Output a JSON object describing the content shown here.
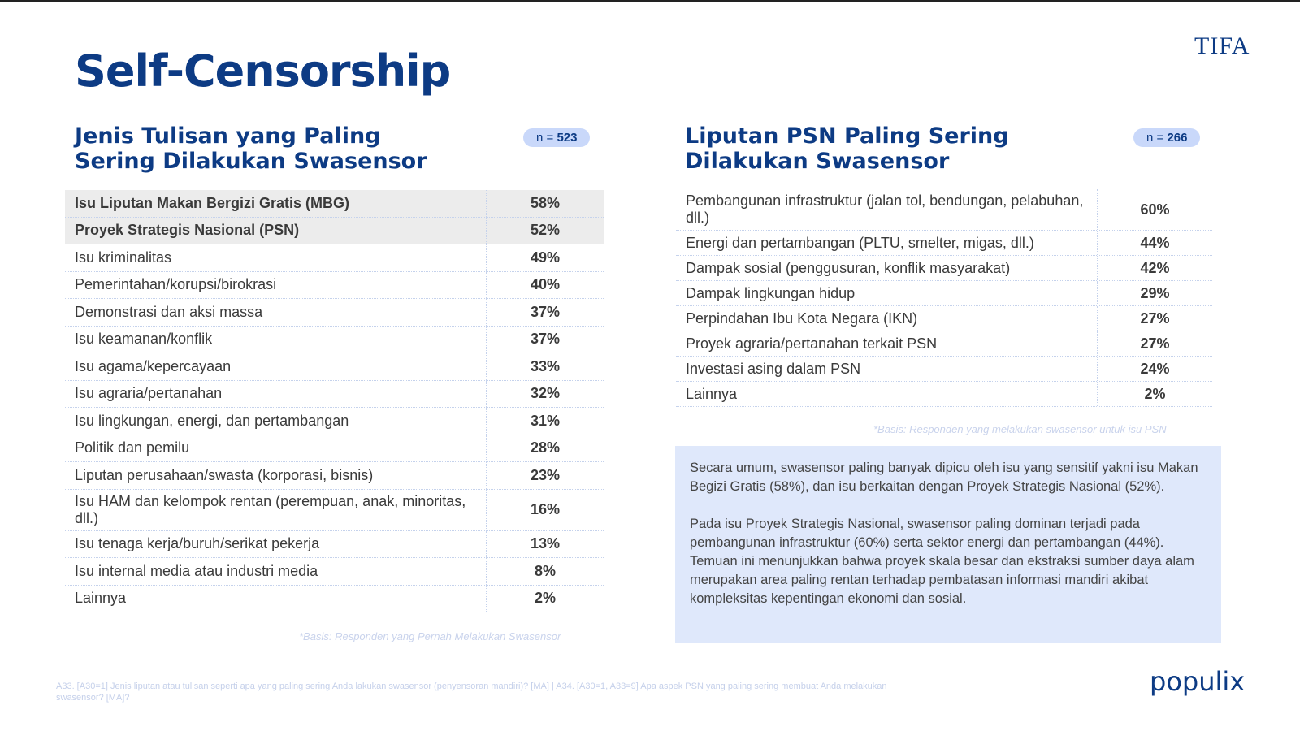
{
  "header": {
    "title": "Self-Censorship",
    "logo": "TIFA",
    "brand": "populix"
  },
  "left": {
    "title": "Jenis Tulisan yang Paling Sering Dilakukan Swasensor",
    "n_prefix": "n =",
    "n": "523",
    "rows": [
      {
        "label": "Isu Liputan Makan Bergizi Gratis (MBG)",
        "value": "58%",
        "highlight": true
      },
      {
        "label": "Proyek Strategis Nasional (PSN)",
        "value": "52%",
        "highlight": true
      },
      {
        "label": "Isu kriminalitas",
        "value": "49%"
      },
      {
        "label": "Pemerintahan/korupsi/birokrasi",
        "value": "40%"
      },
      {
        "label": "Demonstrasi dan aksi massa",
        "value": "37%"
      },
      {
        "label": "Isu keamanan/konflik",
        "value": "37%"
      },
      {
        "label": "Isu agama/kepercayaan",
        "value": "33%"
      },
      {
        "label": "Isu agraria/pertanahan",
        "value": "32%"
      },
      {
        "label": "Isu lingkungan, energi, dan pertambangan",
        "value": "31%"
      },
      {
        "label": "Politik dan pemilu",
        "value": "28%"
      },
      {
        "label": "Liputan perusahaan/swasta (korporasi, bisnis)",
        "value": "23%"
      },
      {
        "label": "Isu HAM dan kelompok rentan (perempuan, anak, minoritas, dll.)",
        "value": "16%"
      },
      {
        "label": "Isu tenaga kerja/buruh/serikat pekerja",
        "value": "13%"
      },
      {
        "label": "Isu internal media atau industri media",
        "value": "8%"
      },
      {
        "label": "Lainnya",
        "value": "2%"
      }
    ],
    "note": "*Basis: Responden yang Pernah Melakukan Swasensor"
  },
  "right": {
    "title": "Liputan PSN Paling Sering Dilakukan Swasensor",
    "n_prefix": "n =",
    "n": "266",
    "rows": [
      {
        "label": "Pembangunan infrastruktur (jalan tol, bendungan, pelabuhan, dll.)",
        "value": "60%"
      },
      {
        "label": "Energi dan pertambangan (PLTU, smelter, migas, dll.)",
        "value": "44%"
      },
      {
        "label": "Dampak sosial (penggusuran, konflik masyarakat)",
        "value": "42%"
      },
      {
        "label": "Dampak lingkungan hidup",
        "value": "29%"
      },
      {
        "label": "Perpindahan Ibu Kota Negara (IKN)",
        "value": "27%"
      },
      {
        "label": "Proyek agraria/pertanahan terkait PSN",
        "value": "27%"
      },
      {
        "label": "Investasi asing dalam PSN",
        "value": "24%"
      },
      {
        "label": "Lainnya",
        "value": "2%"
      }
    ],
    "note": "*Basis: Responden yang melakukan swasensor untuk isu PSN",
    "summary": [
      "Secara umum, swasensor paling banyak dipicu oleh isu yang sensitif yakni isu Makan Begizi Gratis (58%), dan isu berkaitan dengan Proyek Strategis Nasional (52%).",
      "Pada isu Proyek Strategis Nasional, swasensor paling dominan terjadi pada pembangunan infrastruktur (60%) serta sektor energi dan pertambangan (44%). Temuan ini menunjukkan bahwa proyek skala besar dan ekstraksi sumber daya alam merupakan area paling rentan terhadap pembatasan informasi mandiri akibat kompleksitas kepentingan ekonomi dan sosial."
    ]
  },
  "footer": "A33. [A30=1] Jenis liputan atau tulisan seperti apa yang paling sering Anda lakukan swasensor (penyensoran mandiri)? [MA]  |  A34. [A30=1, A33=9] Apa aspek PSN yang paling sering membuat Anda melakukan swasensor? [MA]?"
}
